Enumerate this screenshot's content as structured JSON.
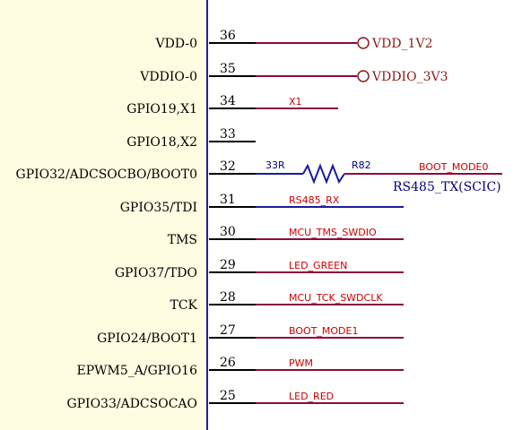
{
  "colors": {
    "body_fill": "#fffde1",
    "body_edge": "#1b1bb0",
    "pin_line": "#000000",
    "wire_red": "#8b0a3e",
    "wire_blue": "#1a1a9e",
    "net_text_red": "#cc0000",
    "port_color": "#8b1a1a"
  },
  "pins": [
    {
      "name": "VDD-0",
      "number": "36",
      "wire": "red",
      "net": "",
      "port": "VDD_1V2"
    },
    {
      "name": "VDDIO-0",
      "number": "35",
      "wire": "red",
      "net": "",
      "port": "VDDIO_3V3"
    },
    {
      "name": "GPIO19,X1",
      "number": "34",
      "wire": "red",
      "net": "X1",
      "port": ""
    },
    {
      "name": "GPIO18,X2",
      "number": "33",
      "wire": "none",
      "net": "",
      "port": ""
    },
    {
      "name": "GPIO32/ADCSOCBO/BOOT0",
      "number": "32",
      "wire": "resistor",
      "net": "BOOT_MODE0",
      "port": ""
    },
    {
      "name": "GPIO35/TDI",
      "number": "31",
      "wire": "blue",
      "net": "RS485_RX",
      "port": ""
    },
    {
      "name": "TMS",
      "number": "30",
      "wire": "red",
      "net": "MCU_TMS_SWDIO",
      "port": ""
    },
    {
      "name": "GPIO37/TDO",
      "number": "29",
      "wire": "red",
      "net": "LED_GREEN",
      "port": ""
    },
    {
      "name": "TCK",
      "number": "28",
      "wire": "red",
      "net": "MCU_TCK_SWDCLK",
      "port": ""
    },
    {
      "name": "GPIO24/BOOT1",
      "number": "27",
      "wire": "red",
      "net": "BOOT_MODE1",
      "port": ""
    },
    {
      "name": "EPWM5_A/GPIO16",
      "number": "26",
      "wire": "red",
      "net": "PWM",
      "port": ""
    },
    {
      "name": "GPIO33/ADCSOCAO",
      "number": "25",
      "wire": "red",
      "net": "LED_RED",
      "port": ""
    }
  ],
  "resistor": {
    "value": "33R",
    "designator": "R82",
    "note": "RS485_TX(SCIC)"
  }
}
